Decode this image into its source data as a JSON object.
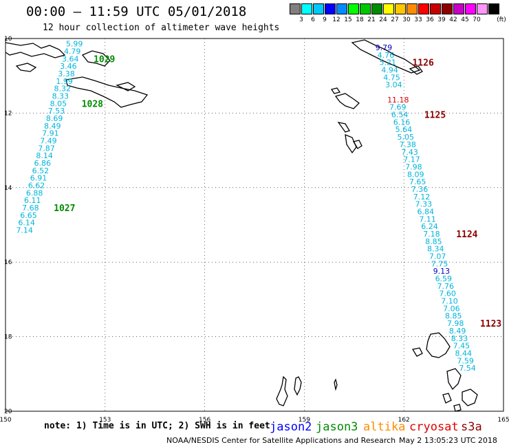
{
  "title": "00:00 – 11:59 UTC 05/01/2018",
  "subtitle": "12 hour collection of altimeter wave heights",
  "colorbar": {
    "unit_label": "(ft)",
    "colors": [
      "#808080",
      "#00ffff",
      "#00c8ff",
      "#0000ff",
      "#008cff",
      "#00ff00",
      "#00c800",
      "#008c00",
      "#ffff00",
      "#ffc800",
      "#ff8c00",
      "#ff0000",
      "#c80000",
      "#8c0000",
      "#c800c8",
      "#ff00ff",
      "#ff96ff",
      "#000000"
    ],
    "labels": [
      "3",
      "6",
      "9",
      "12",
      "15",
      "18",
      "21",
      "24",
      "27",
      "30",
      "33",
      "36",
      "39",
      "42",
      "45",
      "70"
    ]
  },
  "axes": {
    "lon_labels": [
      "150",
      "153",
      "156",
      "159",
      "162",
      "165"
    ],
    "lat_labels": [
      "10",
      "12",
      "14",
      "16",
      "18",
      "20"
    ]
  },
  "tracks": [
    {
      "pass_label": "1029",
      "color": "#008c00",
      "points": [
        {
          "lon": 151.82,
          "lat": -10.14,
          "v": "5.99"
        },
        {
          "lon": 151.76,
          "lat": -10.34,
          "v": "4.79"
        },
        {
          "lon": 151.7,
          "lat": -10.54,
          "v": "3.64"
        },
        {
          "lon": 151.64,
          "lat": -10.74,
          "v": "3.46"
        },
        {
          "lon": 151.58,
          "lat": -10.94,
          "v": "3.38"
        },
        {
          "lon": 151.52,
          "lat": -11.14,
          "v": "1.99"
        }
      ]
    },
    {
      "pass_label": "1028",
      "color": "#008c00",
      "points": [
        {
          "lon": 151.46,
          "lat": -11.34,
          "v": "8.32"
        },
        {
          "lon": 151.4,
          "lat": -11.54,
          "v": "8.33"
        },
        {
          "lon": 151.34,
          "lat": -11.74,
          "v": "8.05"
        },
        {
          "lon": 151.28,
          "lat": -11.94,
          "v": "7.53"
        },
        {
          "lon": 151.22,
          "lat": -12.14,
          "v": "8.69"
        },
        {
          "lon": 151.16,
          "lat": -12.34,
          "v": "8.49"
        },
        {
          "lon": 151.1,
          "lat": -12.54,
          "v": "7.91"
        },
        {
          "lon": 151.04,
          "lat": -12.74,
          "v": "7.49"
        },
        {
          "lon": 150.98,
          "lat": -12.94,
          "v": "7.87"
        },
        {
          "lon": 150.92,
          "lat": -13.14,
          "v": "8.14"
        },
        {
          "lon": 150.86,
          "lat": -13.34,
          "v": "6.86"
        },
        {
          "lon": 150.8,
          "lat": -13.54,
          "v": "6.52"
        },
        {
          "lon": 150.74,
          "lat": -13.74,
          "v": "6.91"
        },
        {
          "lon": 150.68,
          "lat": -13.94,
          "v": "6.62"
        }
      ]
    },
    {
      "pass_label": "1027",
      "color": "#008c00",
      "points": [
        {
          "lon": 150.62,
          "lat": -14.14,
          "v": "6.88"
        },
        {
          "lon": 150.56,
          "lat": -14.34,
          "v": "6.11"
        },
        {
          "lon": 150.5,
          "lat": -14.54,
          "v": "7.68"
        },
        {
          "lon": 150.44,
          "lat": -14.74,
          "v": "6.65"
        },
        {
          "lon": 150.38,
          "lat": -14.94,
          "v": "6.14"
        },
        {
          "lon": 150.32,
          "lat": -15.14,
          "v": "7.14"
        }
      ]
    },
    {
      "pass_label": "1126",
      "color": "#8c0000",
      "points": [
        {
          "lon": 161.14,
          "lat": -10.24,
          "v": "9.79",
          "c": "#0000c8"
        },
        {
          "lon": 161.2,
          "lat": -10.44,
          "v": "4.76"
        },
        {
          "lon": 161.26,
          "lat": -10.64,
          "v": "5.21"
        },
        {
          "lon": 161.32,
          "lat": -10.84,
          "v": "4.94"
        },
        {
          "lon": 161.38,
          "lat": -11.04,
          "v": "4.75"
        },
        {
          "lon": 161.44,
          "lat": -11.24,
          "v": "3.04"
        }
      ]
    },
    {
      "pass_label": "1125",
      "color": "#8c0000",
      "points": [
        {
          "lon": 161.5,
          "lat": -11.64,
          "v": "11.18",
          "c": "#e00000"
        },
        {
          "lon": 161.56,
          "lat": -11.84,
          "v": "7.69"
        },
        {
          "lon": 161.62,
          "lat": -12.04,
          "v": "6.54"
        },
        {
          "lon": 161.68,
          "lat": -12.24,
          "v": "6.16"
        },
        {
          "lon": 161.74,
          "lat": -12.44,
          "v": "5.64"
        },
        {
          "lon": 161.8,
          "lat": -12.64,
          "v": "5.05"
        },
        {
          "lon": 161.86,
          "lat": -12.84,
          "v": "7.38"
        },
        {
          "lon": 161.92,
          "lat": -13.04,
          "v": "7.43"
        },
        {
          "lon": 161.98,
          "lat": -13.24,
          "v": "7.17"
        },
        {
          "lon": 162.04,
          "lat": -13.44,
          "v": "7.98"
        },
        {
          "lon": 162.1,
          "lat": -13.64,
          "v": "8.09"
        },
        {
          "lon": 162.16,
          "lat": -13.84,
          "v": "7.65"
        },
        {
          "lon": 162.22,
          "lat": -14.04,
          "v": "7.36"
        },
        {
          "lon": 162.28,
          "lat": -14.24,
          "v": "7.12"
        },
        {
          "lon": 162.34,
          "lat": -14.44,
          "v": "7.33"
        },
        {
          "lon": 162.4,
          "lat": -14.64,
          "v": "6.84"
        }
      ]
    },
    {
      "pass_label": "1124",
      "color": "#8c0000",
      "points": [
        {
          "lon": 162.46,
          "lat": -14.84,
          "v": "7.11"
        },
        {
          "lon": 162.52,
          "lat": -15.04,
          "v": "6.24"
        },
        {
          "lon": 162.58,
          "lat": -15.24,
          "v": "7.18"
        },
        {
          "lon": 162.64,
          "lat": -15.44,
          "v": "8.85"
        },
        {
          "lon": 162.7,
          "lat": -15.64,
          "v": "8.34"
        },
        {
          "lon": 162.76,
          "lat": -15.84,
          "v": "7.07"
        },
        {
          "lon": 162.82,
          "lat": -16.04,
          "v": "7.75"
        },
        {
          "lon": 162.88,
          "lat": -16.24,
          "v": "9.13",
          "c": "#0000c8"
        },
        {
          "lon": 162.94,
          "lat": -16.44,
          "v": "6.59"
        },
        {
          "lon": 163.0,
          "lat": -16.64,
          "v": "7.76"
        },
        {
          "lon": 163.06,
          "lat": -16.84,
          "v": "7.60"
        },
        {
          "lon": 163.12,
          "lat": -17.04,
          "v": "7.10"
        }
      ]
    },
    {
      "pass_label": "1123",
      "color": "#8c0000",
      "points": [
        {
          "lon": 163.18,
          "lat": -17.24,
          "v": "7.06"
        },
        {
          "lon": 163.24,
          "lat": -17.44,
          "v": "8.85"
        },
        {
          "lon": 163.3,
          "lat": -17.64,
          "v": "7.98"
        },
        {
          "lon": 163.36,
          "lat": -17.84,
          "v": "8.49"
        },
        {
          "lon": 163.42,
          "lat": -18.04,
          "v": "8.33"
        },
        {
          "lon": 163.48,
          "lat": -18.24,
          "v": "7.45"
        },
        {
          "lon": 163.54,
          "lat": -18.44,
          "v": "8.44"
        },
        {
          "lon": 163.6,
          "lat": -18.64,
          "v": "7.59"
        },
        {
          "lon": 163.66,
          "lat": -18.84,
          "v": "7.54"
        }
      ]
    }
  ],
  "value_color": "#00b4dc",
  "satellites": [
    {
      "name": "jason2",
      "color": "#0000ff"
    },
    {
      "name": "jason3",
      "color": "#008c00"
    },
    {
      "name": "altika",
      "color": "#ff8c00"
    },
    {
      "name": "cryosat",
      "color": "#e00000"
    },
    {
      "name": "s3a",
      "color": "#8c0000"
    }
  ],
  "note": "note: 1) Time is in UTC; 2) SWH is in feet",
  "credit": "NOAA/NESDIS Center for Satellite Applications and Research",
  "timestamp": "May  2 13:05:23 UTC 2018"
}
